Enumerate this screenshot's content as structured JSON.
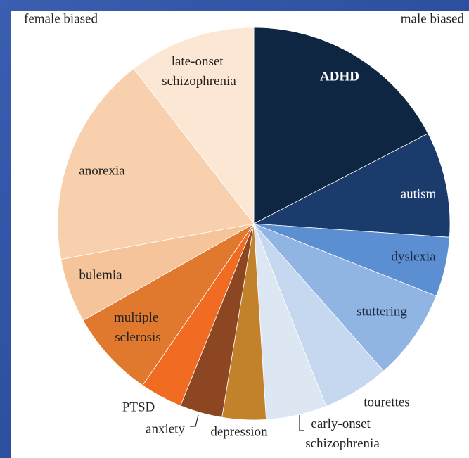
{
  "chart_data": {
    "type": "pie",
    "left_label": "female biased",
    "right_label": "male biased",
    "categories": [
      "ADHD",
      "autism",
      "dyslexia",
      "stuttering",
      "tourettes",
      "early-onset schizophrenia",
      "depression",
      "anxiety",
      "PTSD",
      "multiple sclerosis",
      "bulemia",
      "anorexia",
      "late-onset schizophrenia"
    ],
    "values": [
      17.4,
      8.7,
      4.9,
      7.5,
      5.5,
      5.0,
      3.6,
      3.5,
      3.5,
      7.2,
      5.3,
      17.4,
      10.5
    ],
    "colors": [
      "#0f2642",
      "#1b3b6c",
      "#5b8fd1",
      "#90b5e2",
      "#c5d8ef",
      "#dde7f3",
      "#c2822c",
      "#8c4621",
      "#f26b22",
      "#e0782e",
      "#f5c49b",
      "#f8d0ad",
      "#fce7d5"
    ]
  }
}
